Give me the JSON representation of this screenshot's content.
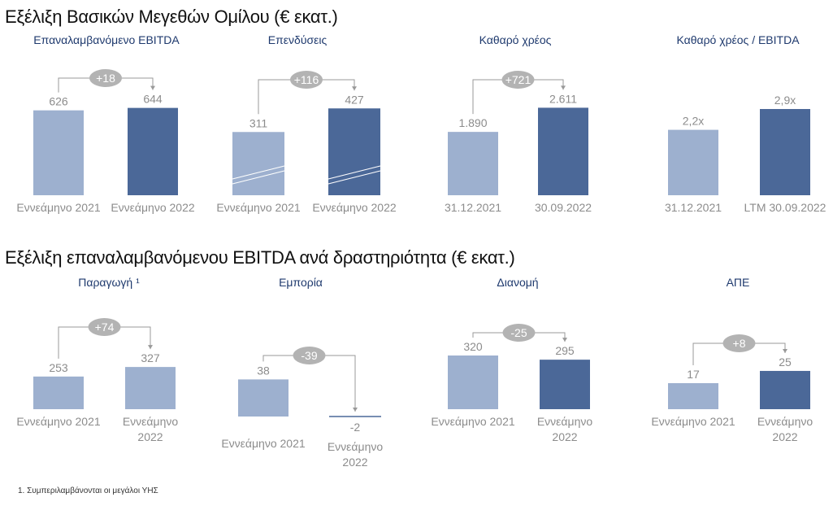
{
  "sections": [
    {
      "title": "Εξέλιξη Βασικών Μεγεθών Ομίλου (€ εκατ.)"
    },
    {
      "title": "Εξέλιξη επαναλαμβανόμενου EBITDA ανά δραστηριότητα  (€ εκατ.)"
    }
  ],
  "colors": {
    "light": "#9db0cf",
    "dark": "#4b6898",
    "bubble": "#b3b3b3",
    "label": "#8c8c8c",
    "title": "#1f3a6e"
  },
  "chart_data": [
    {
      "type": "bar",
      "title": "Επαναλαμβανόμενο EBITDA",
      "categories": [
        "Εννεάμηνο 2021",
        "Εννεάμηνο 2022"
      ],
      "values": [
        626,
        644
      ],
      "value_labels": [
        "626",
        "644"
      ],
      "change_label": "+18"
    },
    {
      "type": "bar",
      "title": "Επενδύσεις",
      "categories": [
        "Εννεάμηνο 2021",
        "Εννεάμηνο 2022"
      ],
      "values": [
        311,
        427
      ],
      "value_labels": [
        "311",
        "427"
      ],
      "change_label": "+116"
    },
    {
      "type": "bar",
      "title": "Καθαρό χρέος",
      "categories": [
        "31.12.2021",
        "30.09.2022"
      ],
      "values": [
        1890,
        2611
      ],
      "value_labels": [
        "1.890",
        "2.611"
      ],
      "change_label": "+721"
    },
    {
      "type": "bar",
      "title": "Καθαρό χρέος / EBITDA",
      "categories": [
        "31.12.2021",
        "LTM 30.09.2022"
      ],
      "values": [
        2.2,
        2.9
      ],
      "value_labels": [
        "2,2x",
        "2,9x"
      ],
      "change_label": ""
    },
    {
      "type": "bar",
      "title": "Παραγωγή ¹",
      "categories": [
        "Εννεάμηνο 2021",
        "Εννεάμηνο 2022"
      ],
      "values": [
        253,
        327
      ],
      "value_labels": [
        "253",
        "327"
      ],
      "change_label": "+74"
    },
    {
      "type": "bar",
      "title": "Εμπορία",
      "categories": [
        "Εννεάμηνο 2021",
        "Εννεάμηνο 2022"
      ],
      "values": [
        38,
        -2
      ],
      "value_labels": [
        "38",
        "-2"
      ],
      "change_label": "-39"
    },
    {
      "type": "bar",
      "title": "Διανομή",
      "categories": [
        "Εννεάμηνο 2021",
        "Εννεάμηνο 2022"
      ],
      "values": [
        320,
        295
      ],
      "value_labels": [
        "320",
        "295"
      ],
      "change_label": "-25"
    },
    {
      "type": "bar",
      "title": "ΑΠΕ",
      "categories": [
        "Εννεάμηνο 2021",
        "Εννεάμηνο 2022"
      ],
      "values": [
        17,
        25
      ],
      "value_labels": [
        "17",
        "25"
      ],
      "change_label": "+8"
    }
  ],
  "footnote": "1. Συμπεριλαμβάνονται οι μεγάλοι ΥΗΣ"
}
